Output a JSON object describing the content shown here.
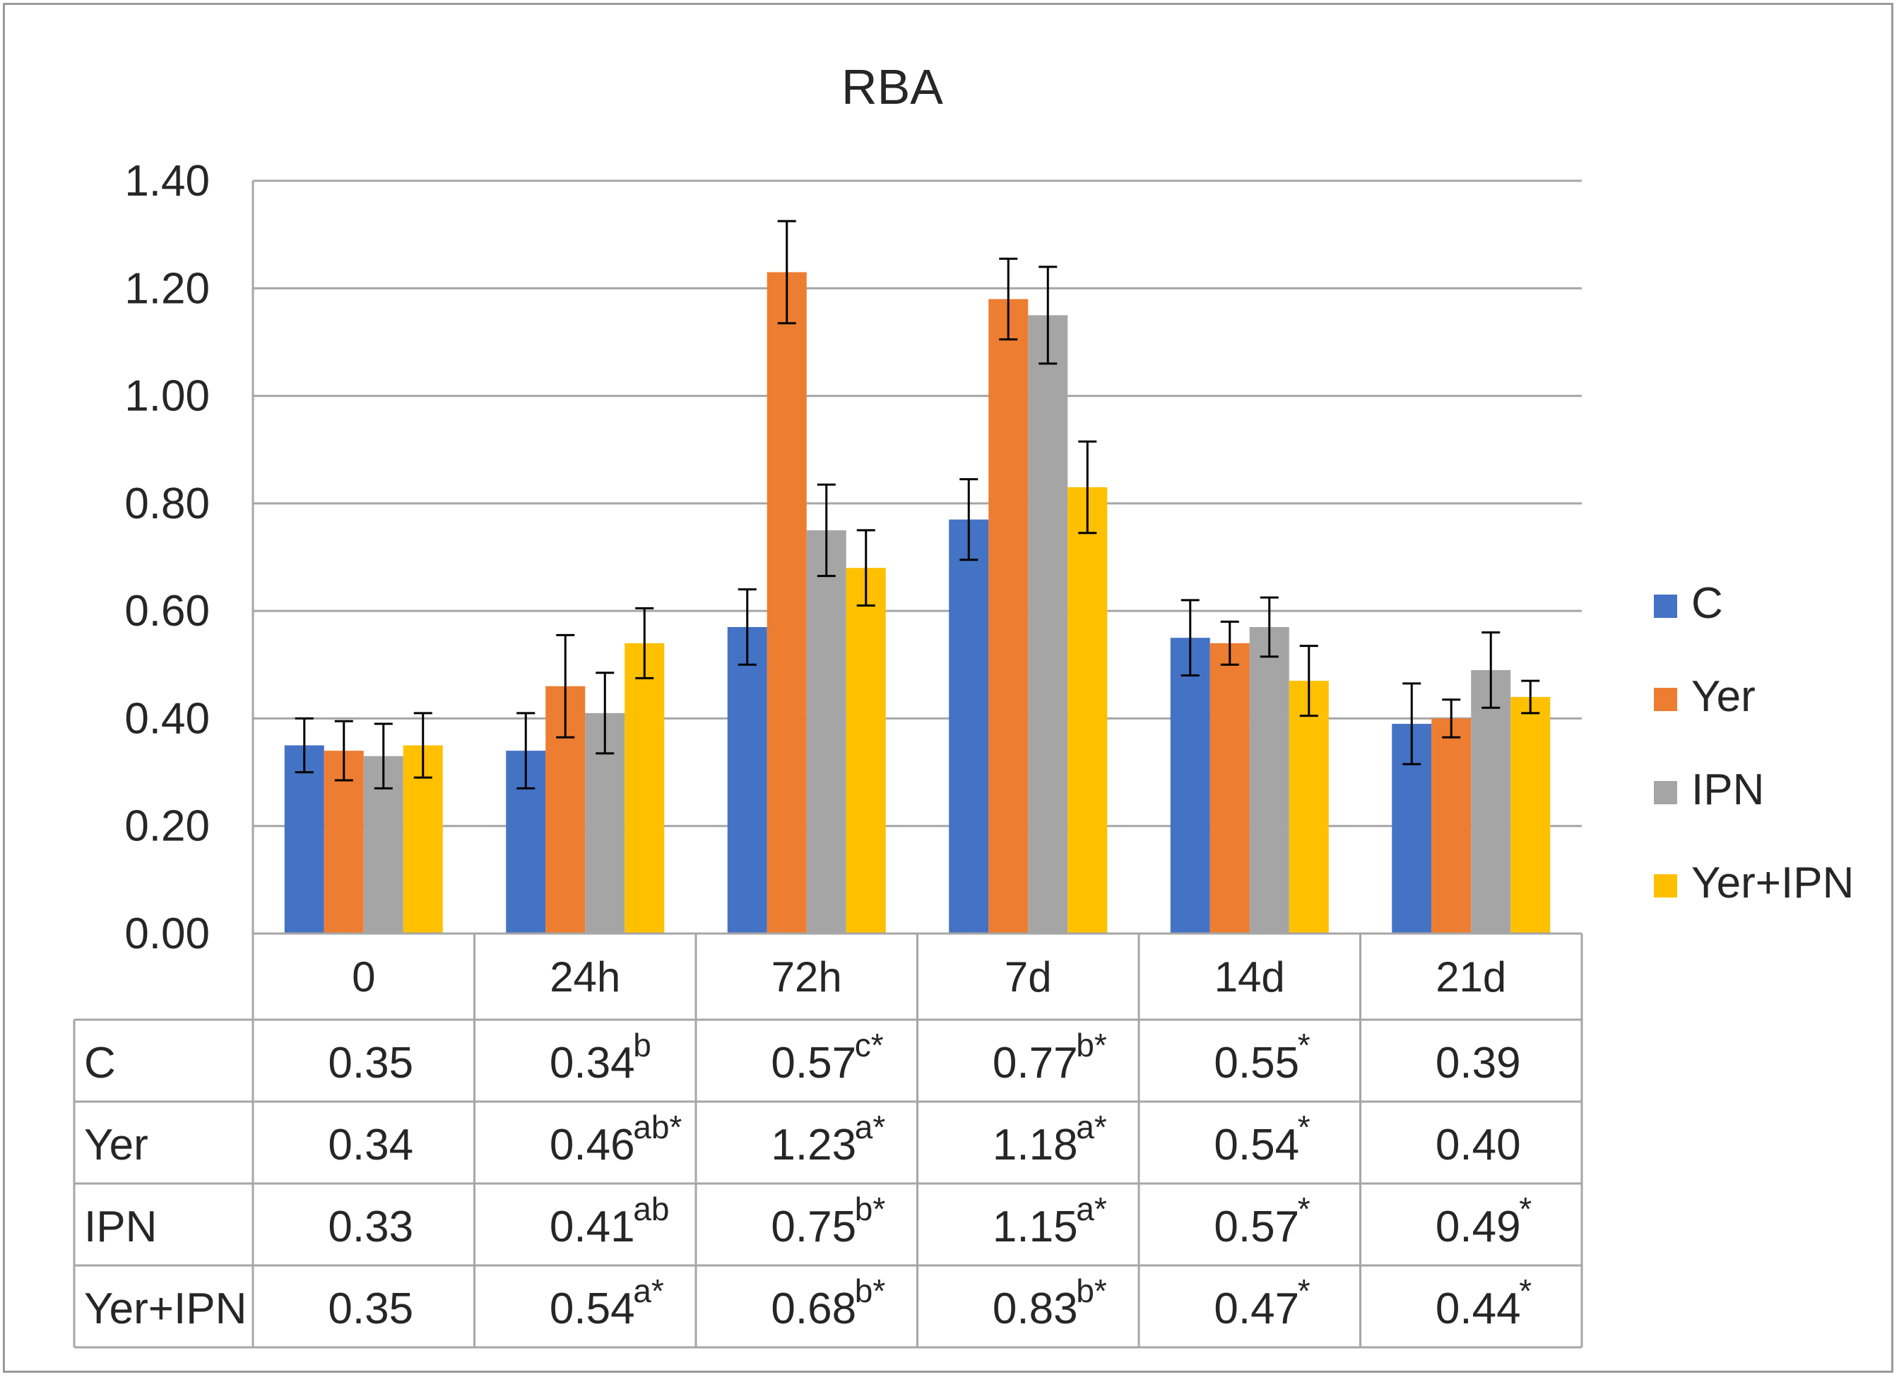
{
  "chart_data": {
    "type": "bar",
    "title": "RBA",
    "categories": [
      "0",
      "24h",
      "72h",
      "7d",
      "14d",
      "21d"
    ],
    "ylim": [
      0,
      1.4
    ],
    "yticks": [
      "0.00",
      "0.20",
      "0.40",
      "0.60",
      "0.80",
      "1.00",
      "1.20",
      "1.40"
    ],
    "grid": true,
    "legend_position": "right",
    "series": [
      {
        "name": "C",
        "color": "#4472C4",
        "values": [
          0.35,
          0.34,
          0.57,
          0.77,
          0.55,
          0.39
        ],
        "errors": [
          0.05,
          0.07,
          0.07,
          0.075,
          0.07,
          0.075
        ],
        "table": [
          "0.35",
          "0.34",
          "0.57",
          "0.77",
          "0.55",
          "0.39"
        ],
        "marks": [
          "",
          "b",
          "c*",
          "b*",
          "*",
          ""
        ]
      },
      {
        "name": "Yer",
        "color": "#ED7D31",
        "values": [
          0.34,
          0.46,
          1.23,
          1.18,
          0.54,
          0.4
        ],
        "errors": [
          0.055,
          0.095,
          0.095,
          0.075,
          0.04,
          0.035
        ],
        "table": [
          "0.34",
          "0.46",
          "1.23",
          "1.18",
          "0.54",
          "0.40"
        ],
        "marks": [
          "",
          "ab*",
          "a*",
          "a*",
          "*",
          ""
        ]
      },
      {
        "name": "IPN",
        "color": "#A5A5A5",
        "values": [
          0.33,
          0.41,
          0.75,
          1.15,
          0.57,
          0.49
        ],
        "errors": [
          0.06,
          0.075,
          0.085,
          0.09,
          0.055,
          0.07
        ],
        "table": [
          "0.33",
          "0.41",
          "0.75",
          "1.15",
          "0.57",
          "0.49"
        ],
        "marks": [
          "",
          "ab",
          "b*",
          "a*",
          "*",
          "*"
        ]
      },
      {
        "name": "Yer+IPN",
        "color": "#FFC000",
        "values": [
          0.35,
          0.54,
          0.68,
          0.83,
          0.47,
          0.44
        ],
        "errors": [
          0.06,
          0.065,
          0.07,
          0.085,
          0.065,
          0.03
        ],
        "table": [
          "0.35",
          "0.54",
          "0.68",
          "0.83",
          "0.47",
          "0.44"
        ],
        "marks": [
          "",
          "a*",
          "b*",
          "b*",
          "*",
          "*"
        ]
      }
    ]
  }
}
